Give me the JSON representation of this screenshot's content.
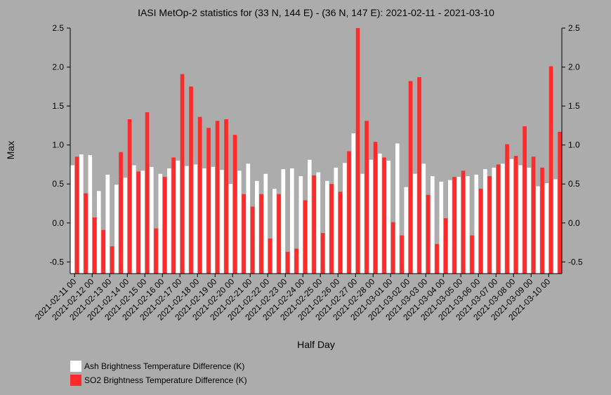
{
  "chart_data": {
    "type": "bar",
    "title": "IASI MetOp-2 statistics for (33 N, 144 E) - (36 N, 147 E): 2021-02-11 - 2021-03-10",
    "xlabel": "Half Day",
    "ylabel": "Max",
    "ylim": [
      -0.65,
      2.5
    ],
    "yticks": [
      -0.5,
      0.0,
      0.5,
      1.0,
      1.5,
      2.0,
      2.5
    ],
    "ytick_labels": [
      "-0.5",
      "0.0",
      "0.5",
      "1.0",
      "1.5",
      "2.0",
      "2.5"
    ],
    "x_tick_labels": [
      "2021-02-11 00",
      "2021-02-12 00",
      "2021-02-13 00",
      "2021-02-14 00",
      "2021-02-15 00",
      "2021-02-16 00",
      "2021-02-17 00",
      "2021-02-18 00",
      "2021-02-19 00",
      "2021-02-20 00",
      "2021-02-21 00",
      "2021-02-22 00",
      "2021-02-23 00",
      "2021-02-24 00",
      "2021-02-25 00",
      "2021-02-26 00",
      "2021-02-27 00",
      "2021-02-28 00",
      "2021-03-01 00",
      "2021-03-02 00",
      "2021-03-03 00",
      "2021-03-04 00",
      "2021-03-05 00",
      "2021-03-06 00",
      "2021-03-07 00",
      "2021-03-08 00",
      "2021-03-09 00",
      "2021-03-10 00"
    ],
    "legend_position": "bottom-left",
    "series": [
      {
        "name": "Ash Brightness Temperature Difference (K)",
        "color": "#ffffff",
        "values": [
          0.74,
          0.88,
          0.87,
          0.41,
          0.62,
          0.49,
          0.58,
          0.74,
          0.67,
          0.72,
          0.63,
          0.7,
          0.8,
          0.73,
          0.75,
          0.7,
          0.72,
          0.68,
          0.5,
          0.67,
          0.76,
          0.54,
          0.63,
          0.44,
          0.69,
          0.7,
          0.6,
          0.81,
          0.65,
          0.54,
          0.71,
          0.77,
          1.15,
          0.63,
          0.81,
          0.89,
          0.8,
          1.02,
          0.46,
          0.63,
          0.76,
          0.6,
          0.53,
          0.55,
          0.59,
          0.6,
          0.62,
          0.69,
          0.71,
          0.76,
          0.82,
          0.74,
          0.71,
          0.47,
          0.51,
          0.56
        ]
      },
      {
        "name": "SO2 Brightness Temperature Difference (K)",
        "color": "#ff2a2a",
        "values": [
          0.85,
          0.38,
          0.07,
          -0.09,
          -0.3,
          0.91,
          1.33,
          0.66,
          1.42,
          -0.07,
          0.59,
          0.84,
          1.91,
          1.75,
          1.36,
          1.22,
          1.31,
          1.33,
          1.13,
          0.37,
          0.21,
          0.37,
          -0.2,
          0.37,
          -0.37,
          -0.33,
          0.29,
          0.61,
          -0.13,
          0.5,
          0.4,
          0.92,
          2.5,
          1.31,
          1.04,
          0.84,
          0.01,
          -0.16,
          1.82,
          1.87,
          0.36,
          -0.27,
          0.06,
          0.59,
          0.67,
          -0.16,
          0.44,
          0.6,
          0.75,
          1.01,
          0.86,
          1.24,
          0.85,
          0.71,
          2.01,
          1.17
        ]
      }
    ]
  }
}
